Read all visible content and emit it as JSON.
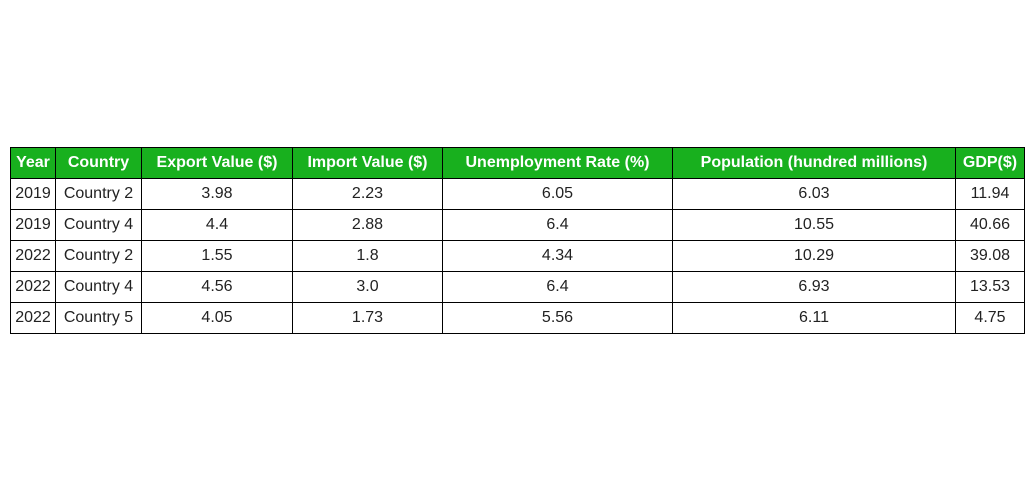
{
  "chart_data": {
    "type": "table",
    "columns": [
      "Year",
      "Country",
      "Export Value ($)",
      "Import Value ($)",
      "Unemployment Rate (%)",
      "Population (hundred millions)",
      "GDP($)"
    ],
    "rows": [
      [
        "2019",
        "Country 2",
        "3.98",
        "2.23",
        "6.05",
        "6.03",
        "11.94"
      ],
      [
        "2019",
        "Country 4",
        "4.4",
        "2.88",
        "6.4",
        "10.55",
        "40.66"
      ],
      [
        "2022",
        "Country 2",
        "1.55",
        "1.8",
        "4.34",
        "10.29",
        "39.08"
      ],
      [
        "2022",
        "Country 4",
        "4.56",
        "3.0",
        "6.4",
        "6.93",
        "13.53"
      ],
      [
        "2022",
        "Country 5",
        "4.05",
        "1.73",
        "5.56",
        "6.11",
        "4.75"
      ]
    ]
  },
  "colors": {
    "header_background": "#18b01e",
    "header_text": "#ffffff",
    "cell_text": "#222222",
    "border": "#000000"
  }
}
